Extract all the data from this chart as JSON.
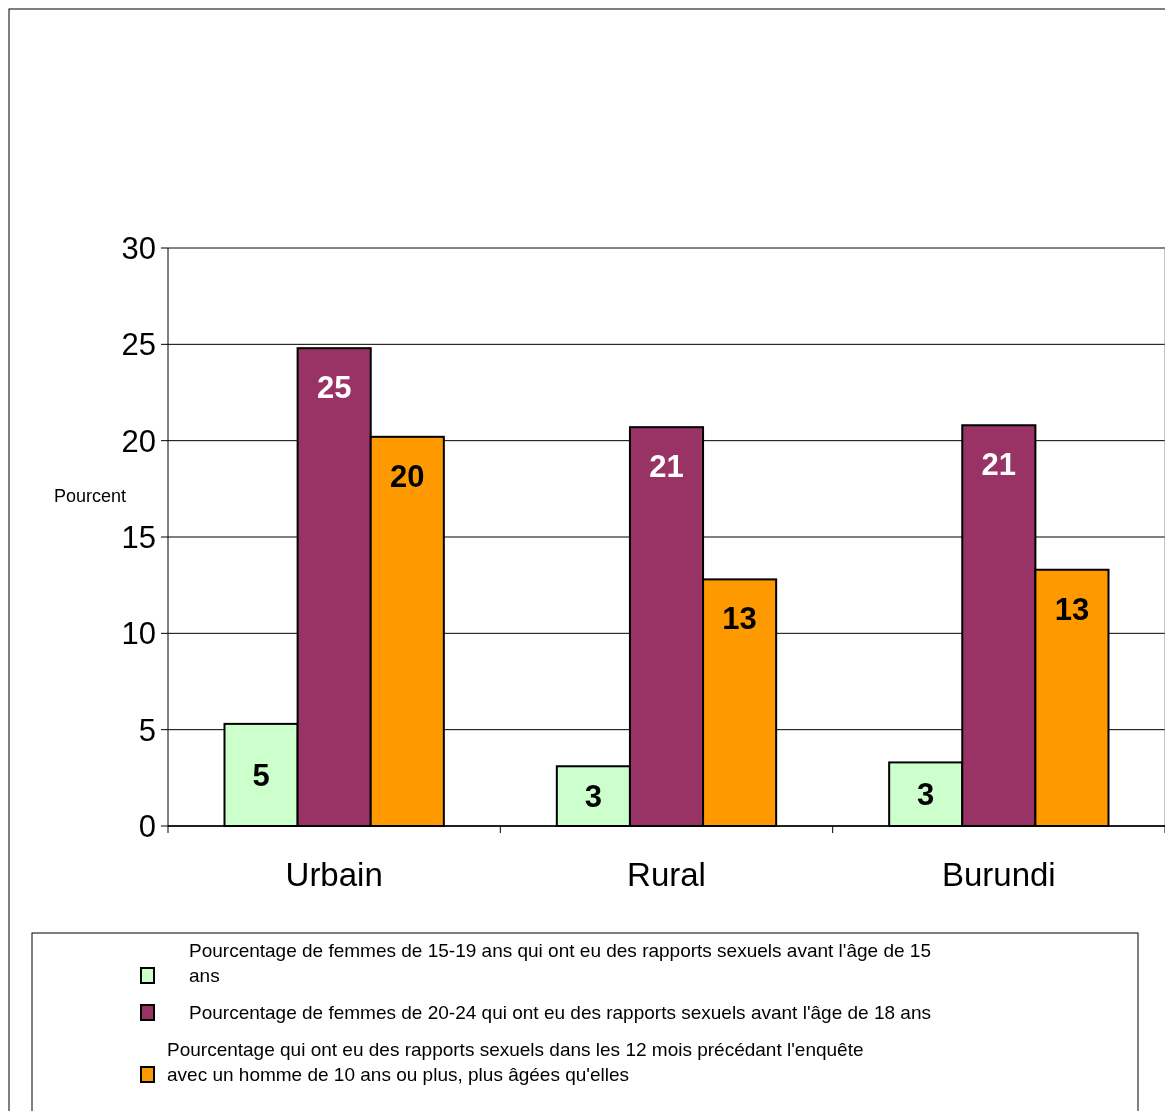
{
  "chart_data": {
    "type": "bar",
    "ylabel": "Pourcent",
    "categories": [
      "Urbain",
      "Rural",
      "Burundi"
    ],
    "series": [
      {
        "name": "Pourcentage de femmes de 15-19 ans qui ont eu des rapports sexuels avant l'âge de 15 ans",
        "color": "#ccffcc",
        "values": [
          5.3,
          3.1,
          3.3
        ],
        "value_labels": [
          "5",
          "3",
          "3"
        ]
      },
      {
        "name": "Pourcentage de femmes de 20-24 qui ont eu des rapports sexuels avant l'âge de 18 ans",
        "color": "#993366",
        "values": [
          24.8,
          20.7,
          20.8
        ],
        "value_labels": [
          "25",
          "21",
          "21"
        ]
      },
      {
        "name": "Pourcentage qui ont eu des rapports sexuels dans les 12 mois précédant l'enquête avec un homme de 10 ans ou plus, plus âgées qu'elles",
        "color": "#ff9900",
        "values": [
          20.2,
          12.8,
          13.3
        ],
        "value_labels": [
          "20",
          "13",
          "13"
        ]
      }
    ],
    "ylim": [
      0,
      30
    ],
    "yticks": [
      0,
      5,
      10,
      15,
      20,
      25,
      30
    ],
    "grid": "y",
    "legend": "bottom"
  }
}
